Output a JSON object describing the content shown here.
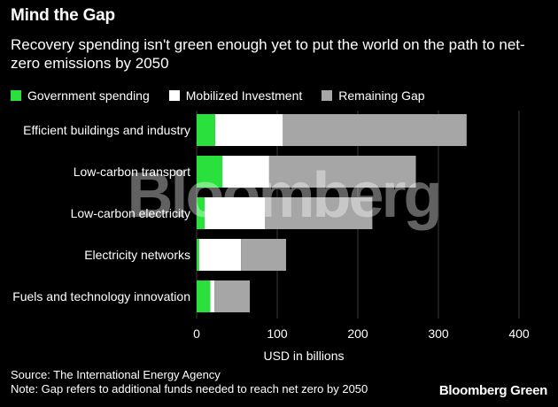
{
  "header": {
    "title": "Mind the Gap",
    "subtitle": "Recovery spending isn't green enough yet to put the world on the path to net-zero emissions by 2050"
  },
  "legend": [
    {
      "label": "Government spending",
      "color": "#29e03c"
    },
    {
      "label": "Mobilized Investment",
      "color": "#ffffff"
    },
    {
      "label": "Remaining Gap",
      "color": "#a6a6a6"
    }
  ],
  "chart_data": {
    "type": "bar",
    "orientation": "horizontal",
    "stacked": true,
    "categories": [
      "Efficient buildings and industry",
      "Low-carbon transport",
      "Low-carbon electricity",
      "Electricity networks",
      "Fuels and technology innovation"
    ],
    "series": [
      {
        "name": "Government spending",
        "color": "#29e03c",
        "values": [
          23,
          32,
          10,
          3,
          17
        ]
      },
      {
        "name": "Mobilized Investment",
        "color": "#ffffff",
        "values": [
          84,
          58,
          75,
          52,
          5
        ]
      },
      {
        "name": "Remaining Gap",
        "color": "#a6a6a6",
        "values": [
          228,
          182,
          133,
          56,
          44
        ]
      }
    ],
    "xlabel": "USD in billions",
    "xlim": [
      0,
      400
    ],
    "xticks": [
      0,
      100,
      200,
      300,
      400
    ],
    "grid": "vertical",
    "legend_position": "top-left"
  },
  "footer": {
    "source": "Source: The International Energy Agency",
    "note": "Note: Gap refers to additional funds needed to reach net zero by 2050"
  },
  "brand": "Bloomberg Green",
  "watermark": "Bloomberg"
}
